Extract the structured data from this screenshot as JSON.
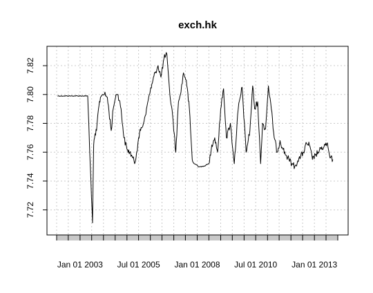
{
  "chart_data": {
    "type": "line",
    "title": "exch.hk",
    "xlabel": "",
    "ylabel": "",
    "x_range": [
      "2002-01-01",
      "2013-12-31"
    ],
    "ylim": [
      7.705,
      7.832
    ],
    "grid": true,
    "y_ticks": [
      7.72,
      7.74,
      7.76,
      7.78,
      7.8,
      7.82
    ],
    "y_tick_labels": [
      "7.72",
      "7.74",
      "7.76",
      "7.78",
      "7.80",
      "7.82"
    ],
    "x_tick_labels": [
      {
        "date": "2003-01-01",
        "label": "Jan 01 2003"
      },
      {
        "date": "2005-07-01",
        "label": "Jul 01 2005"
      },
      {
        "date": "2008-01-01",
        "label": "Jan 01 2008"
      },
      {
        "date": "2010-07-01",
        "label": "Jul 01 2010"
      },
      {
        "date": "2013-01-01",
        "label": "Jan 01 2013"
      }
    ],
    "series": [
      {
        "color": "#000000",
        "x": [
          "2002-01-15",
          "2002-08-01",
          "2003-03-01",
          "2003-05-01",
          "2003-06-01",
          "2003-07-15",
          "2003-08-01",
          "2003-08-15",
          "2003-09-15",
          "2003-10-15",
          "2003-11-15",
          "2003-12-15",
          "2004-01-15",
          "2004-03-01",
          "2004-05-01",
          "2004-06-01",
          "2004-07-15",
          "2004-08-15",
          "2004-10-01",
          "2004-11-15",
          "2005-01-01",
          "2005-02-15",
          "2005-04-01",
          "2005-05-01",
          "2005-06-01",
          "2005-07-01",
          "2005-08-01",
          "2005-09-15",
          "2005-11-01",
          "2005-12-15",
          "2006-02-01",
          "2006-03-15",
          "2006-05-01",
          "2006-06-15",
          "2006-08-01",
          "2006-09-15",
          "2006-11-01",
          "2006-12-15",
          "2007-02-01",
          "2007-03-15",
          "2007-04-15",
          "2007-06-01",
          "2007-07-15",
          "2007-09-01",
          "2007-10-15",
          "2007-11-15",
          "2008-01-01",
          "2008-01-15",
          "2008-02-15",
          "2008-04-01",
          "2008-05-15",
          "2008-07-01",
          "2008-08-15",
          "2008-10-01",
          "2008-11-15",
          "2009-01-01",
          "2009-02-15",
          "2009-04-01",
          "2009-06-01",
          "2009-08-01",
          "2009-10-01",
          "2009-12-01",
          "2010-02-01",
          "2010-04-01",
          "2010-05-15",
          "2010-06-15",
          "2010-08-01",
          "2010-09-15",
          "2010-10-15",
          "2010-12-01",
          "2011-01-15",
          "2011-03-01",
          "2011-04-15",
          "2011-06-01",
          "2011-07-15",
          "2011-09-01",
          "2011-10-15",
          "2011-12-01",
          "2012-01-15",
          "2012-03-01",
          "2012-04-15",
          "2012-06-01",
          "2012-07-15",
          "2012-09-01",
          "2012-10-15",
          "2012-12-01",
          "2013-01-15",
          "2013-03-01",
          "2013-04-15",
          "2013-06-01",
          "2013-07-15",
          "2013-09-01",
          "2013-10-15"
        ],
        "y": [
          7.799,
          7.799,
          7.799,
          7.799,
          7.76,
          7.711,
          7.765,
          7.77,
          7.775,
          7.79,
          7.798,
          7.8,
          7.8,
          7.798,
          7.775,
          7.79,
          7.8,
          7.8,
          7.79,
          7.77,
          7.762,
          7.76,
          7.756,
          7.752,
          7.76,
          7.77,
          7.775,
          7.78,
          7.79,
          7.8,
          7.808,
          7.815,
          7.82,
          7.812,
          7.825,
          7.828,
          7.8,
          7.785,
          7.76,
          7.795,
          7.8,
          7.815,
          7.81,
          7.79,
          7.755,
          7.752,
          7.751,
          7.75,
          7.75,
          7.75,
          7.751,
          7.752,
          7.765,
          7.77,
          7.76,
          7.79,
          7.804,
          7.77,
          7.78,
          7.752,
          7.79,
          7.805,
          7.76,
          7.775,
          7.806,
          7.79,
          7.795,
          7.752,
          7.78,
          7.776,
          7.806,
          7.79,
          7.77,
          7.76,
          7.768,
          7.762,
          7.758,
          7.755,
          7.752,
          7.75,
          7.754,
          7.757,
          7.76,
          7.766,
          7.765,
          7.755,
          7.758,
          7.76,
          7.762,
          7.764,
          7.766,
          7.756,
          7.755
        ]
      }
    ]
  }
}
